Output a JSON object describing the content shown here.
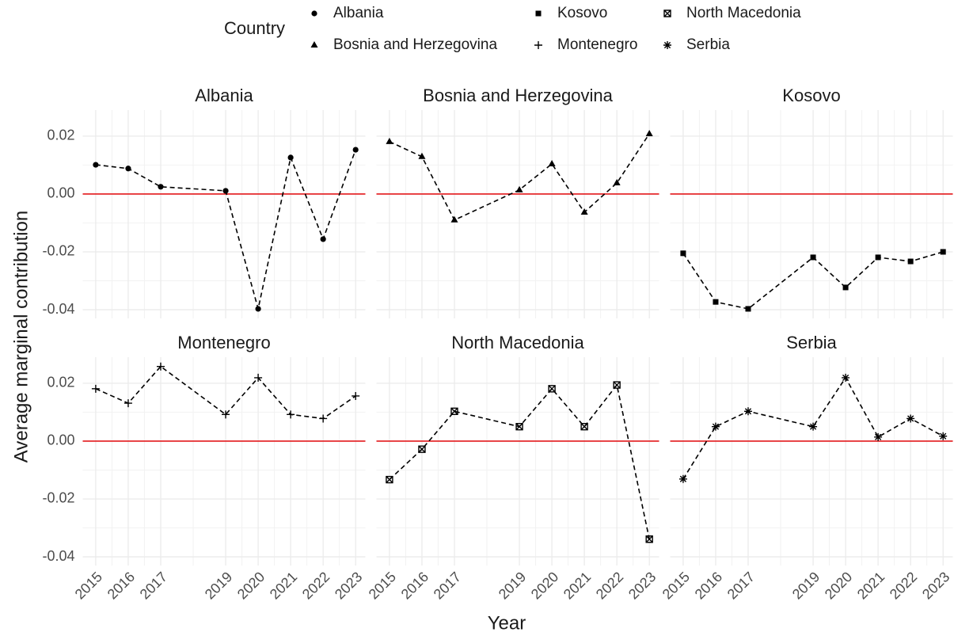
{
  "legend": {
    "title": "Country"
  },
  "axes": {
    "xlabel": "Year",
    "ylabel": "Average marginal contribution",
    "xlim": [
      2014.6,
      2023.3
    ],
    "xticks": [
      2015,
      2016,
      2017,
      2019,
      2020,
      2021,
      2022,
      2023
    ],
    "ylim": [
      -0.043,
      0.029
    ],
    "yticks": [
      -0.04,
      -0.02,
      {
        "value": 0,
        "label": "0.00"
      },
      0.02
    ],
    "grid": true
  },
  "reference_line": {
    "value": 0,
    "color": "#e41a1c"
  },
  "chart_data": [
    {
      "type": "line",
      "title": "Albania",
      "x": [
        2015,
        2016,
        2017,
        2019,
        2020,
        2021,
        2022,
        2023
      ],
      "series": [
        {
          "name": "Albania",
          "shape": "circle",
          "color": "#000000",
          "values": [
            0.0101,
            0.0088,
            0.0025,
            0.0011,
            -0.0397,
            0.0126,
            -0.0156,
            0.0153
          ]
        }
      ]
    },
    {
      "type": "line",
      "title": "Bosnia and Herzegovina",
      "x": [
        2015,
        2016,
        2017,
        2019,
        2020,
        2021,
        2022,
        2023
      ],
      "series": [
        {
          "name": "Bosnia and Herzegovina",
          "shape": "triangle",
          "color": "#000000",
          "values": [
            0.0181,
            0.0129,
            -0.009,
            0.0014,
            0.0104,
            -0.0063,
            0.0038,
            0.0208
          ]
        }
      ]
    },
    {
      "type": "line",
      "title": "Kosovo",
      "x": [
        2015,
        2016,
        2017,
        2019,
        2020,
        2021,
        2022,
        2023
      ],
      "series": [
        {
          "name": "Kosovo",
          "shape": "square",
          "color": "#000000",
          "values": [
            -0.0205,
            -0.0373,
            -0.0397,
            -0.0219,
            -0.0323,
            -0.0219,
            -0.0233,
            -0.02
          ]
        }
      ]
    },
    {
      "type": "line",
      "title": "Montenegro",
      "x": [
        2015,
        2016,
        2017,
        2019,
        2020,
        2021,
        2022,
        2023
      ],
      "series": [
        {
          "name": "Montenegro",
          "shape": "plus",
          "color": "#000000",
          "values": [
            0.0181,
            0.0131,
            0.0258,
            0.0092,
            0.0219,
            0.0092,
            0.0078,
            0.0156
          ]
        }
      ]
    },
    {
      "type": "line",
      "title": "North Macedonia",
      "x": [
        2015,
        2016,
        2017,
        2019,
        2020,
        2021,
        2022,
        2023
      ],
      "series": [
        {
          "name": "North Macedonia",
          "shape": "boxcross",
          "color": "#000000",
          "values": [
            -0.0133,
            -0.0028,
            0.0103,
            0.005,
            0.0181,
            0.005,
            0.0194,
            -0.0339
          ]
        }
      ]
    },
    {
      "type": "line",
      "title": "Serbia",
      "x": [
        2015,
        2016,
        2017,
        2019,
        2020,
        2021,
        2022,
        2023
      ],
      "series": [
        {
          "name": "Serbia",
          "shape": "asterisk",
          "color": "#000000",
          "values": [
            -0.0131,
            0.005,
            0.0103,
            0.005,
            0.0219,
            0.0014,
            0.0078,
            0.0017
          ]
        }
      ]
    }
  ]
}
